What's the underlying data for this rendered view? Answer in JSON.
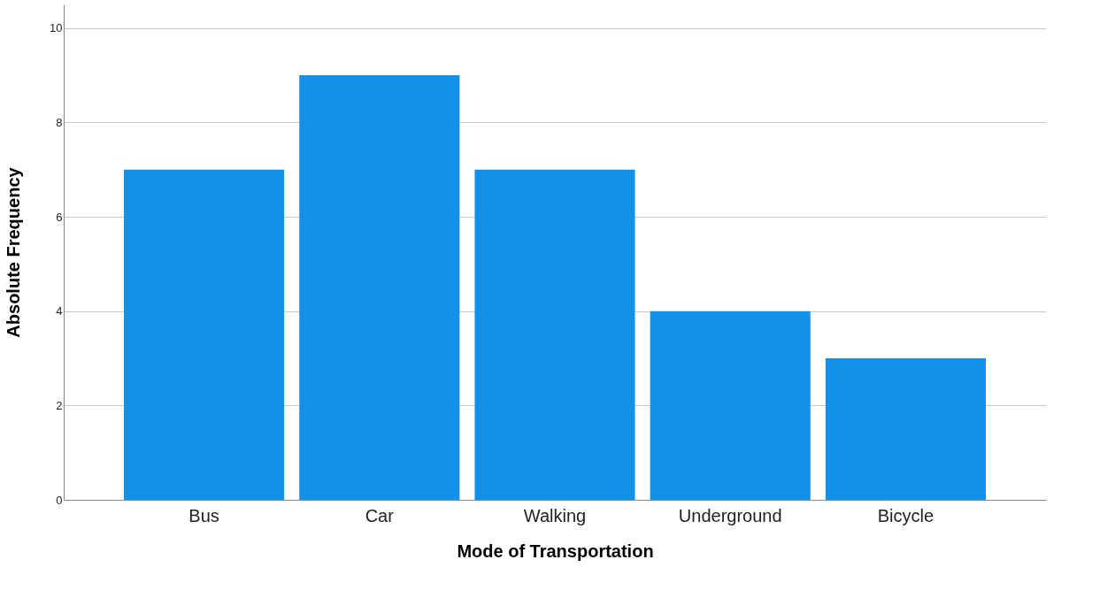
{
  "chart_data": {
    "type": "bar",
    "xlabel": "Mode of Transportation",
    "ylabel": "Absolute Frequency",
    "categories": [
      "Bus",
      "Car",
      "Walking",
      "Underground",
      "Bicycle"
    ],
    "values": [
      7,
      9,
      7,
      4,
      3
    ],
    "color": "#1391e8",
    "ylim": [
      0,
      10.5
    ],
    "yticks": [
      0,
      2,
      4,
      6,
      8,
      10
    ],
    "grid": "y"
  }
}
